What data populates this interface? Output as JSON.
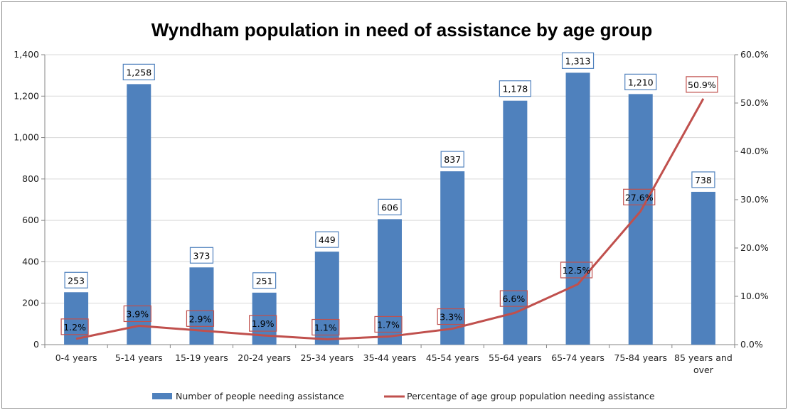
{
  "chart_data": {
    "type": "bar",
    "title": "Wyndham population in need of assistance by age group",
    "categories": [
      "0-4 years",
      "5-14 years",
      "15-19 years",
      "20-24 years",
      "25-34 years",
      "35-44 years",
      "45-54 years",
      "55-64 years",
      "65-74 years",
      "75-84 years",
      "85 years and over"
    ],
    "series": [
      {
        "name": "Number of people needing assistance",
        "type": "bar",
        "axis": "left",
        "color": "#4f81bd",
        "values": [
          253,
          1258,
          373,
          251,
          449,
          606,
          837,
          1178,
          1313,
          1210,
          738
        ],
        "labels": [
          "253",
          "1,258",
          "373",
          "251",
          "449",
          "606",
          "837",
          "1,178",
          "1,313",
          "1,210",
          "738"
        ]
      },
      {
        "name": "Percentage of age group population needing assistance",
        "type": "line",
        "axis": "right",
        "color": "#c0504d",
        "values": [
          1.2,
          3.9,
          2.9,
          1.9,
          1.1,
          1.7,
          3.3,
          6.6,
          12.5,
          27.6,
          50.9
        ],
        "labels": [
          "1.2%",
          "3.9%",
          "2.9%",
          "1.9%",
          "1.1%",
          "1.7%",
          "3.3%",
          "6.6%",
          "12.5%",
          "27.6%",
          "50.9%"
        ]
      }
    ],
    "left_axis": {
      "ylim": [
        0,
        1400
      ],
      "ticks": [
        0,
        200,
        400,
        600,
        800,
        1000,
        1200,
        1400
      ],
      "tick_labels": [
        "0",
        "200",
        "400",
        "600",
        "800",
        "1,000",
        "1,200",
        "1,400"
      ]
    },
    "right_axis": {
      "ylim": [
        0,
        60
      ],
      "ticks": [
        0,
        10,
        20,
        30,
        40,
        50,
        60
      ],
      "tick_labels": [
        "0.0%",
        "10.0%",
        "20.0%",
        "30.0%",
        "40.0%",
        "50.0%",
        "60.0%"
      ]
    },
    "grid": true,
    "legend_position": "bottom"
  }
}
